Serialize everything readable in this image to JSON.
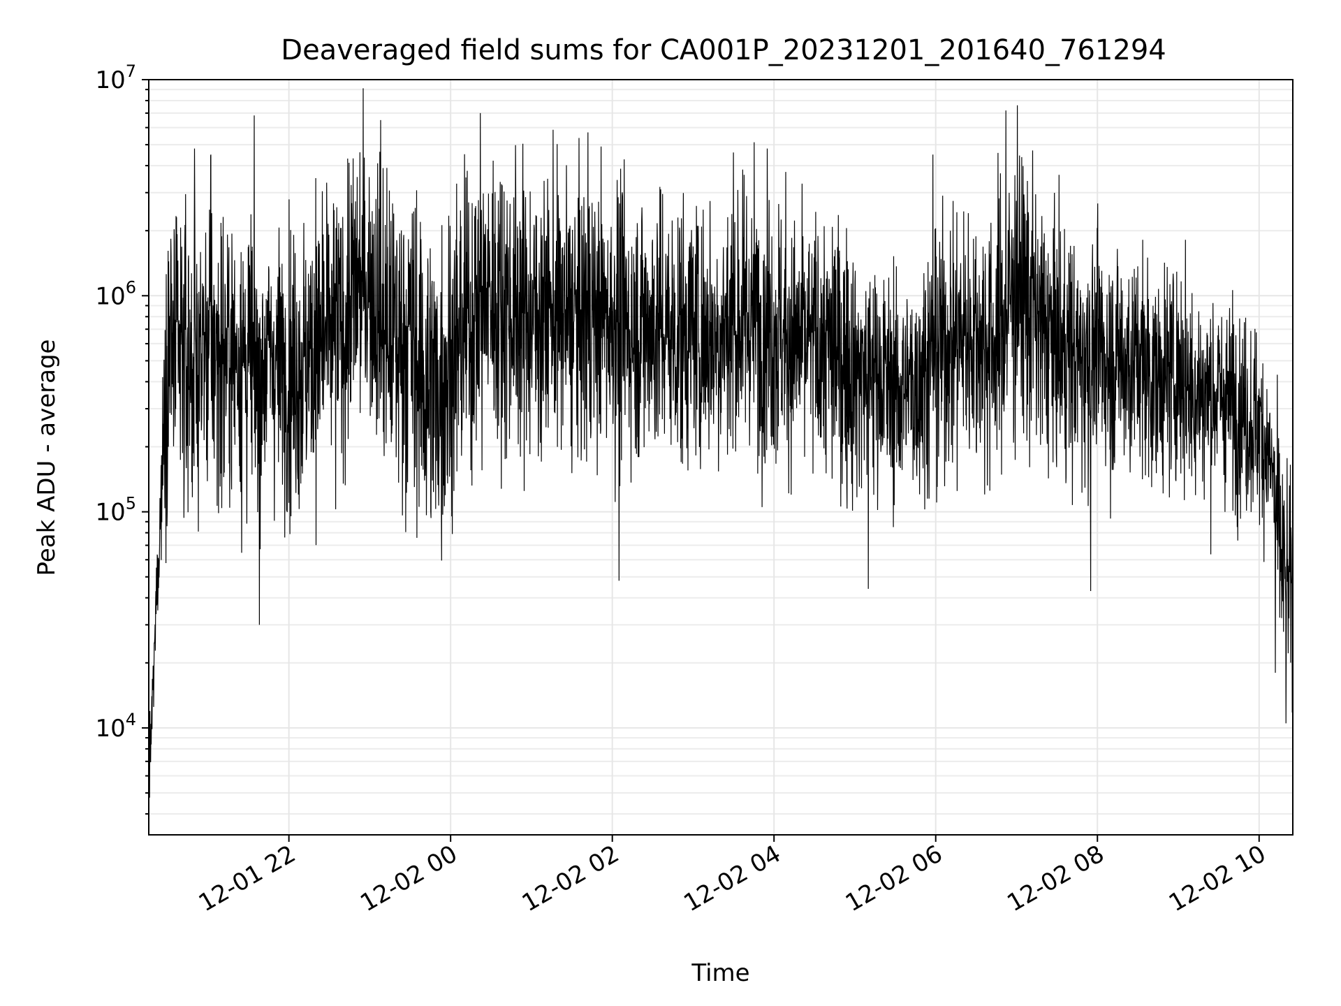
{
  "chart_data": {
    "type": "line",
    "title": "Deaveraged field sums for CA001P_20231201_201640_761294",
    "xlabel": "Time",
    "ylabel": "Peak ADU - average",
    "yscale": "log",
    "ylim": [
      3200,
      10000000
    ],
    "xlim": [
      "2023-12-01 20:16",
      "2023-12-02 10:25"
    ],
    "x_ticks": [
      {
        "value": "2023-12-01 22:00",
        "label": "12-01 22"
      },
      {
        "value": "2023-12-02 00:00",
        "label": "12-02 00"
      },
      {
        "value": "2023-12-02 02:00",
        "label": "12-02 02"
      },
      {
        "value": "2023-12-02 04:00",
        "label": "12-02 04"
      },
      {
        "value": "2023-12-02 06:00",
        "label": "12-02 06"
      },
      {
        "value": "2023-12-02 08:00",
        "label": "12-02 08"
      },
      {
        "value": "2023-12-02 10:00",
        "label": "12-02 10"
      }
    ],
    "y_ticks": [
      {
        "value": 10000,
        "base": "10",
        "exp": "4"
      },
      {
        "value": 100000,
        "base": "10",
        "exp": "5"
      },
      {
        "value": 1000000,
        "base": "10",
        "exp": "6"
      },
      {
        "value": 10000000,
        "base": "10",
        "exp": "7"
      }
    ],
    "grid": true,
    "series": [
      {
        "color": "#000000",
        "x": [
          "2023-12-01 20:16",
          "2023-12-01 20:18",
          "2023-12-01 20:20",
          "2023-12-01 20:22",
          "2023-12-01 20:25",
          "2023-12-01 20:28",
          "2023-12-01 20:31",
          "2023-12-01 20:34",
          "2023-12-01 20:37",
          "2023-12-01 20:40",
          "2023-12-01 20:50",
          "2023-12-01 21:00",
          "2023-12-01 21:10",
          "2023-12-01 21:20",
          "2023-12-01 21:30",
          "2023-12-01 21:40",
          "2023-12-01 21:45",
          "2023-12-01 21:50",
          "2023-12-01 22:00",
          "2023-12-01 22:10",
          "2023-12-01 22:20",
          "2023-12-01 22:30",
          "2023-12-01 22:40",
          "2023-12-01 22:50",
          "2023-12-01 23:00",
          "2023-12-01 23:10",
          "2023-12-01 23:20",
          "2023-12-01 23:30",
          "2023-12-01 23:40",
          "2023-12-01 23:50",
          "2023-12-02 00:00",
          "2023-12-02 00:15",
          "2023-12-02 00:30",
          "2023-12-02 00:45",
          "2023-12-02 01:00",
          "2023-12-02 01:15",
          "2023-12-02 01:30",
          "2023-12-02 01:45",
          "2023-12-02 02:00",
          "2023-12-02 02:15",
          "2023-12-02 02:30",
          "2023-12-02 02:45",
          "2023-12-02 03:00",
          "2023-12-02 03:15",
          "2023-12-02 03:30",
          "2023-12-02 03:45",
          "2023-12-02 04:00",
          "2023-12-02 04:15",
          "2023-12-02 04:30",
          "2023-12-02 04:45",
          "2023-12-02 05:00",
          "2023-12-02 05:15",
          "2023-12-02 05:30",
          "2023-12-02 05:45",
          "2023-12-02 06:00",
          "2023-12-02 06:15",
          "2023-12-02 06:30",
          "2023-12-02 06:45",
          "2023-12-02 07:00",
          "2023-12-02 07:15",
          "2023-12-02 07:30",
          "2023-12-02 07:45",
          "2023-12-02 08:00",
          "2023-12-02 08:15",
          "2023-12-02 08:30",
          "2023-12-02 08:45",
          "2023-12-02 09:00",
          "2023-12-02 09:15",
          "2023-12-02 09:30",
          "2023-12-02 09:45",
          "2023-12-02 10:00",
          "2023-12-02 10:05",
          "2023-12-02 10:10",
          "2023-12-02 10:15",
          "2023-12-02 10:20",
          "2023-12-02 10:25"
        ],
        "y_median": [
          5000,
          10000,
          20000,
          45000,
          110000,
          350000,
          600000,
          550000,
          500000,
          500000,
          480000,
          600000,
          520000,
          550000,
          500000,
          450000,
          550000,
          500000,
          450000,
          480000,
          550000,
          650000,
          700000,
          1100000,
          1200000,
          700000,
          600000,
          650000,
          400000,
          350000,
          500000,
          800000,
          1000000,
          900000,
          800000,
          850000,
          750000,
          800000,
          800000,
          700000,
          750000,
          650000,
          700000,
          650000,
          750000,
          800000,
          700000,
          600000,
          600000,
          550000,
          450000,
          450000,
          350000,
          400000,
          550000,
          650000,
          650000,
          600000,
          1200000,
          700000,
          600000,
          500000,
          550000,
          500000,
          500000,
          400000,
          450000,
          350000,
          350000,
          300000,
          250000,
          200000,
          150000,
          70000,
          45000,
          45000
        ],
        "y_spread": [
          0.2,
          0.2,
          0.25,
          0.25,
          0.35,
          0.55,
          0.75,
          0.75,
          0.75,
          0.75,
          0.7,
          0.75,
          0.75,
          0.75,
          0.75,
          0.7,
          0.6,
          0.65,
          0.7,
          0.75,
          0.7,
          0.75,
          0.75,
          0.7,
          0.75,
          0.75,
          0.8,
          0.85,
          0.85,
          0.85,
          0.8,
          0.75,
          0.75,
          0.75,
          0.7,
          0.7,
          0.7,
          0.7,
          0.7,
          0.7,
          0.7,
          0.7,
          0.7,
          0.7,
          0.7,
          0.7,
          0.7,
          0.65,
          0.65,
          0.7,
          0.65,
          0.6,
          0.55,
          0.6,
          0.65,
          0.65,
          0.7,
          0.7,
          0.75,
          0.7,
          0.65,
          0.6,
          0.6,
          0.6,
          0.6,
          0.55,
          0.55,
          0.55,
          0.5,
          0.5,
          0.5,
          0.45,
          0.5,
          0.55,
          0.5,
          0.5
        ],
        "peaks": [
          {
            "x": "2023-12-01 20:50",
            "y": 4800000
          },
          {
            "x": "2023-12-01 21:02",
            "y": 4500000
          },
          {
            "x": "2023-12-01 22:20",
            "y": 3500000
          },
          {
            "x": "2023-12-01 23:08",
            "y": 6500000
          },
          {
            "x": "2023-12-02 00:22",
            "y": 7000000
          },
          {
            "x": "2023-12-02 01:42",
            "y": 5700000
          },
          {
            "x": "2023-12-02 03:30",
            "y": 4600000
          },
          {
            "x": "2023-12-02 03:55",
            "y": 4800000
          },
          {
            "x": "2023-12-02 05:58",
            "y": 4500000
          },
          {
            "x": "2023-12-02 06:52",
            "y": 7200000
          },
          {
            "x": "2023-12-02 07:12",
            "y": 4700000
          }
        ],
        "troughs": [
          {
            "x": "2023-12-01 21:38",
            "y": 30000
          },
          {
            "x": "2023-12-02 02:05",
            "y": 48000
          },
          {
            "x": "2023-12-02 05:10",
            "y": 44000
          },
          {
            "x": "2023-12-02 07:55",
            "y": 43000
          },
          {
            "x": "2023-12-02 10:12",
            "y": 18000
          },
          {
            "x": "2023-12-02 10:20",
            "y": 10500
          }
        ]
      }
    ]
  }
}
